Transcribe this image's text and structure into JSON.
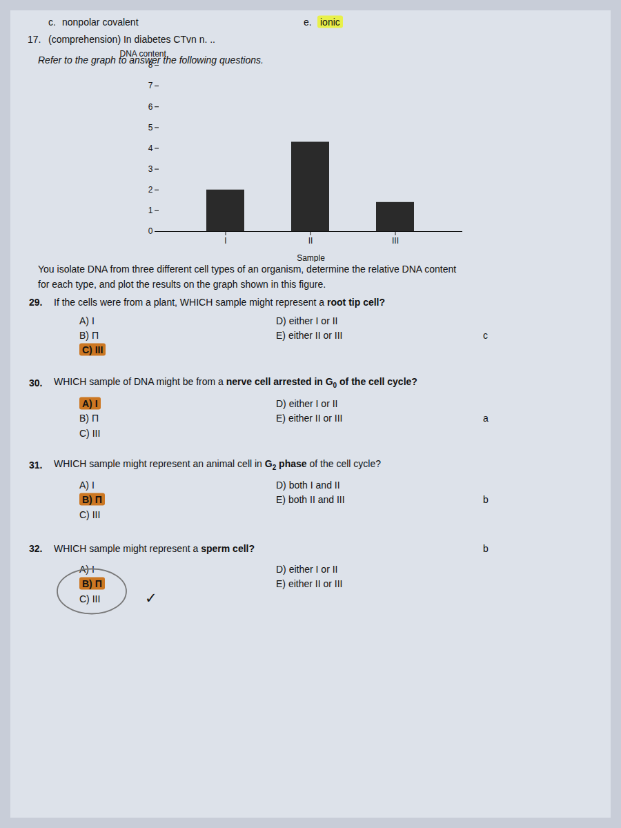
{
  "chart_data": {
    "type": "bar",
    "categories": [
      "I",
      "II",
      "III"
    ],
    "values": [
      2.0,
      4.3,
      1.4
    ],
    "color": "#2a2a2a",
    "xlabel": "Sample",
    "ylabel": "DNA content",
    "ylim": [
      0,
      8
    ],
    "yticks": [
      0,
      1,
      2,
      3,
      4,
      5,
      6,
      7,
      8
    ],
    "annotations": [
      {
        "text": "c."
      },
      {
        "text": "nonpolar covalent"
      },
      {
        "text": "e."
      },
      {
        "text": "ionic",
        "color": "#e8f04a"
      },
      {
        "text": "17."
      },
      {
        "text": "(comprehension) In diabetes CTvn n. .."
      },
      {
        "text": "Refer to the graph to answer the following questions."
      },
      {
        "text": "You isolate DNA from three different cell types of an organism, determine the relative DNA content"
      },
      {
        "text": "for each type, and plot the results on the graph shown in this figure."
      },
      {
        "text": "29."
      },
      {
        "text": "If the cells were from a plant, WHICH sample might represent a "
      },
      {
        "text": "root tip cell?"
      },
      {
        "text": "A) I"
      },
      {
        "text": "D) either I or II"
      },
      {
        "text": "B) Π"
      },
      {
        "text": "E) either II or III"
      },
      {
        "text": "c"
      },
      {
        "text": "C) III",
        "color": "#cc7722"
      },
      {
        "text": "30."
      },
      {
        "text": "WHICH sample of DNA might be from a "
      },
      {
        "text": "nerve cell arrested in G"
      },
      {
        "text": "0"
      },
      {
        "text": " of the cell cycle?"
      },
      {
        "text": "D) either I or II"
      },
      {
        "text": "E) either II or III"
      },
      {
        "text": "a"
      },
      {
        "text": "A) I",
        "color": "#cc7722"
      },
      {
        "text": "B) Π"
      },
      {
        "text": "C) III"
      },
      {
        "text": "31."
      },
      {
        "text": "WHICH sample might represent an animal cell in "
      },
      {
        "text": "G"
      },
      {
        "text": "2"
      },
      {
        "text": " phase"
      },
      {
        "text": " of the cell cycle?"
      },
      {
        "text": "A) I"
      },
      {
        "text": "D) both I and II"
      },
      {
        "text": "E) both II and III"
      },
      {
        "text": "b"
      },
      {
        "text": "B) Π",
        "color": "#cc7722"
      },
      {
        "text": "C) III"
      },
      {
        "text": "32."
      },
      {
        "text": "WHICH sample might represent a "
      },
      {
        "text": "sperm cell?"
      },
      {
        "text": "b"
      },
      {
        "text": "A) I"
      },
      {
        "text": "D) either I or II"
      },
      {
        "text": "B) Π",
        "color": "#cc7722"
      },
      {
        "text": "E) either II or III"
      },
      {
        "text": "C) III"
      },
      {
        "text": "✓"
      }
    ]
  }
}
